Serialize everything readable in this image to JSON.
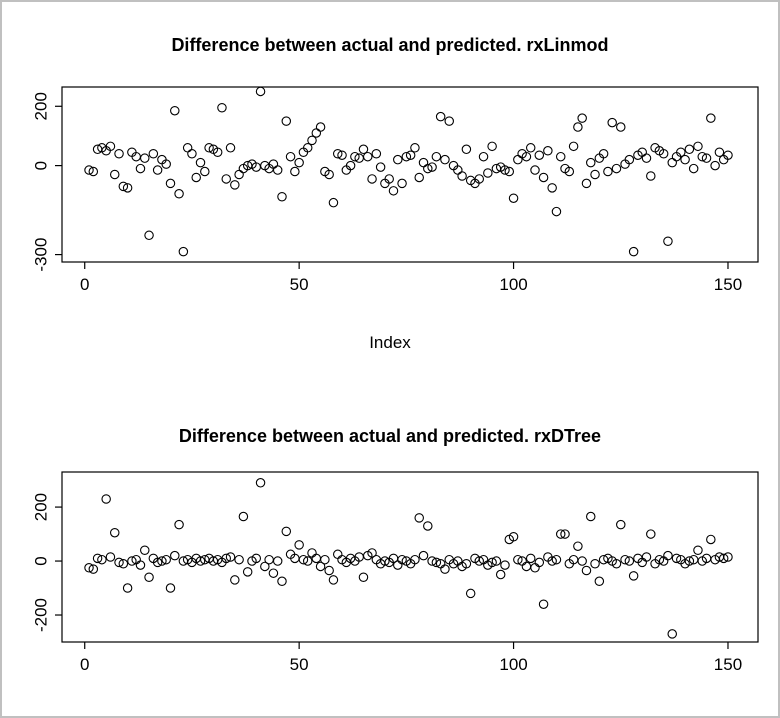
{
  "window": {
    "background": "#ffffff",
    "border_color": "#c0c0c0",
    "foreground": "#000000"
  },
  "chart_data": [
    {
      "type": "scatter",
      "title": "Difference between actual and predicted. rxLinmod",
      "xlabel": "Index",
      "ylabel": "",
      "marker": "open-circle",
      "point_color": "#000000",
      "grid": false,
      "legend": "none",
      "x_start": 1,
      "xlim": [
        -5.3,
        157
      ],
      "ylim": [
        -325,
        265
      ],
      "xticks": [
        0,
        50,
        100,
        150
      ],
      "yticks": [
        200,
        0,
        -300
      ],
      "values": [
        -15,
        -20,
        55,
        60,
        50,
        65,
        -30,
        40,
        -70,
        -75,
        45,
        30,
        -10,
        25,
        -235,
        40,
        -15,
        20,
        5,
        -60,
        185,
        -95,
        -290,
        60,
        40,
        -40,
        10,
        -20,
        60,
        55,
        45,
        195,
        -45,
        60,
        -65,
        -30,
        -10,
        0,
        5,
        -5,
        250,
        0,
        -10,
        5,
        -15,
        -105,
        150,
        30,
        -20,
        10,
        45,
        60,
        85,
        110,
        130,
        -20,
        -30,
        -125,
        40,
        35,
        -15,
        0,
        30,
        25,
        55,
        30,
        -45,
        40,
        -5,
        -60,
        -45,
        -85,
        20,
        -60,
        30,
        35,
        60,
        -40,
        10,
        -10,
        -5,
        30,
        165,
        20,
        150,
        0,
        -15,
        -35,
        55,
        -50,
        -60,
        -45,
        30,
        -25,
        65,
        -10,
        -5,
        -15,
        -20,
        -110,
        20,
        40,
        30,
        60,
        -15,
        35,
        -40,
        50,
        -75,
        -155,
        30,
        -10,
        -20,
        65,
        130,
        160,
        -60,
        10,
        -30,
        25,
        40,
        -20,
        145,
        -10,
        130,
        5,
        20,
        -290,
        35,
        45,
        25,
        -35,
        60,
        50,
        40,
        -255,
        10,
        30,
        45,
        20,
        55,
        -10,
        65,
        30,
        25,
        160,
        0,
        45,
        20,
        35
      ]
    },
    {
      "type": "scatter",
      "title": "Difference between actual and predicted. rxDTree",
      "xlabel": "",
      "ylabel": "",
      "marker": "open-circle",
      "point_color": "#000000",
      "grid": false,
      "legend": "none",
      "x_start": 1,
      "xlim": [
        -5.3,
        157
      ],
      "ylim": [
        -300,
        330
      ],
      "xticks": [
        0,
        50,
        100,
        150
      ],
      "yticks": [
        200,
        0,
        -200
      ],
      "values": [
        -25,
        -30,
        10,
        5,
        230,
        15,
        105,
        -5,
        -10,
        -100,
        0,
        5,
        -15,
        40,
        -60,
        10,
        -5,
        0,
        5,
        -100,
        20,
        135,
        0,
        5,
        -5,
        10,
        0,
        5,
        10,
        0,
        5,
        -5,
        10,
        15,
        -70,
        5,
        165,
        -40,
        0,
        10,
        290,
        -20,
        5,
        -45,
        0,
        -75,
        110,
        25,
        10,
        60,
        5,
        0,
        30,
        10,
        -20,
        5,
        -35,
        -70,
        25,
        5,
        -5,
        10,
        0,
        15,
        -60,
        20,
        30,
        5,
        -10,
        0,
        -5,
        10,
        -15,
        5,
        0,
        -10,
        5,
        160,
        20,
        130,
        0,
        -5,
        -10,
        -30,
        5,
        -10,
        0,
        -20,
        -10,
        -120,
        10,
        0,
        5,
        -15,
        -5,
        0,
        -50,
        -15,
        80,
        90,
        5,
        0,
        -20,
        10,
        -25,
        -5,
        -160,
        15,
        0,
        5,
        100,
        100,
        -10,
        5,
        55,
        0,
        -35,
        165,
        -10,
        -75,
        5,
        10,
        0,
        -10,
        135,
        5,
        0,
        -55,
        10,
        -5,
        15,
        100,
        -10,
        5,
        0,
        20,
        -270,
        10,
        5,
        -10,
        0,
        5,
        40,
        0,
        10,
        80,
        5,
        15,
        10,
        15
      ]
    }
  ]
}
